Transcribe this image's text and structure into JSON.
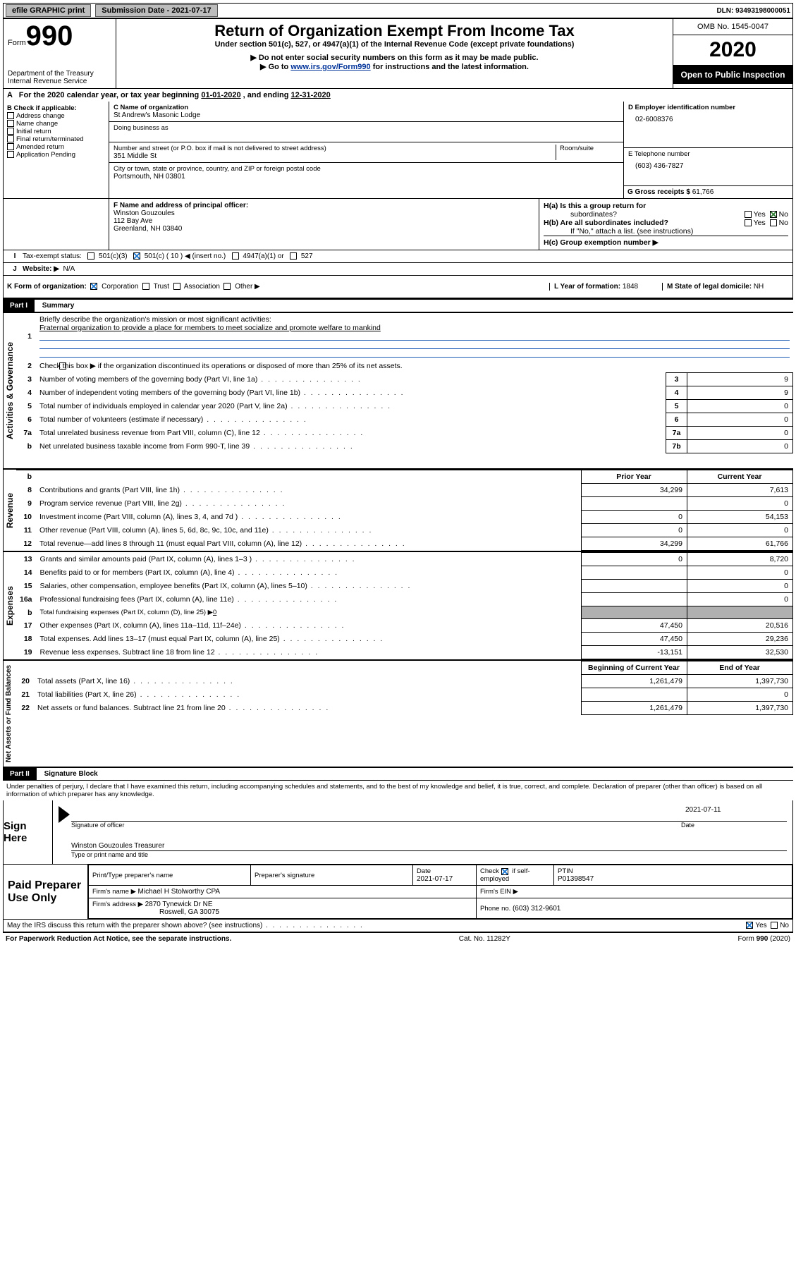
{
  "topbar": {
    "efile": "efile GRAPHIC print",
    "subdate_label": "Submission Date - ",
    "subdate": "2021-07-17",
    "dln_label": "DLN: ",
    "dln": "93493198000051"
  },
  "header": {
    "form_word": "Form",
    "form_no": "990",
    "dept1": "Department of the Treasury",
    "dept2": "Internal Revenue Service",
    "title": "Return of Organization Exempt From Income Tax",
    "sub1": "Under section 501(c), 527, or 4947(a)(1) of the Internal Revenue Code (except private foundations)",
    "sub2": "▶ Do not enter social security numbers on this form as it may be made public.",
    "sub3a": "▶ Go to ",
    "sub3_link": "www.irs.gov/Form990",
    "sub3b": " for instructions and the latest information.",
    "omb": "OMB No. 1545-0047",
    "year": "2020",
    "inspect": "Open to Public Inspection"
  },
  "sectionA": {
    "text_a": "For the 2020 calendar year, or tax year beginning ",
    "begin": "01-01-2020",
    "text_b": "   , and ending ",
    "end": "12-31-2020"
  },
  "colB": {
    "label": "B Check if applicable:",
    "opts": [
      "Address change",
      "Name change",
      "Initial return",
      "Final return/terminated",
      "Amended return",
      "Application Pending"
    ]
  },
  "colC": {
    "c_label": "C Name of organization",
    "org": "St Andrew's Masonic Lodge",
    "dba_label": "Doing business as",
    "addr_label": "Number and street (or P.O. box if mail is not delivered to street address)",
    "room_label": "Room/suite",
    "addr": "351 Middle St",
    "city_label": "City or town, state or province, country, and ZIP or foreign postal code",
    "city": "Portsmouth, NH   03801"
  },
  "colD": {
    "label": "D Employer identification number",
    "ein": "02-6008376",
    "tel_label": "E Telephone number",
    "tel": "(603) 436-7827",
    "gross_label": "G Gross receipts $ ",
    "gross": "61,766"
  },
  "f": {
    "label": "F  Name and address of principal officer:",
    "name": "Winston Gouzoules",
    "l1": "112 Bay Ave",
    "l2": "Greenland, NH   03840"
  },
  "h": {
    "a_label": "H(a)  Is this a group return for",
    "a_sub": "subordinates?",
    "b_label": "H(b)  Are all subordinates included?",
    "b_note": "If \"No,\" attach a list. (see instructions)",
    "c_label": "H(c)  Group exemption number ▶",
    "yes": "Yes",
    "no": "No"
  },
  "i": {
    "label": "Tax-exempt status:",
    "o1": "501(c)(3)",
    "o2a": "501(c) ( ",
    "o2_n": "10",
    "o2b": " ) ◀ (insert no.)",
    "o3": "4947(a)(1) or",
    "o4": "527"
  },
  "j": {
    "label": "Website: ▶",
    "val": "N/A"
  },
  "k": {
    "label": "K Form of organization:",
    "o1": "Corporation",
    "o2": "Trust",
    "o3": "Association",
    "o4": "Other ▶"
  },
  "l": {
    "label": "L Year of formation: ",
    "val": "1848"
  },
  "m": {
    "label": "M State of legal domicile: ",
    "val": "NH"
  },
  "part1": {
    "hdr": "Part I",
    "title": "Summary",
    "q1a": "Briefly describe the organization's mission or most significant activities:",
    "q1b": "Fraternal organization to provide a place for members to meet socialize and promote welfare to mankind",
    "q2": "Check this box ▶         if the organization discontinued its operations or disposed of more than 25% of its net assets.",
    "lines_ag": [
      {
        "n": "3",
        "t": "Number of voting members of the governing body (Part VI, line 1a)",
        "box": "3",
        "v": "9"
      },
      {
        "n": "4",
        "t": "Number of independent voting members of the governing body (Part VI, line 1b)",
        "box": "4",
        "v": "9"
      },
      {
        "n": "5",
        "t": "Total number of individuals employed in calendar year 2020 (Part V, line 2a)",
        "box": "5",
        "v": "0"
      },
      {
        "n": "6",
        "t": "Total number of volunteers (estimate if necessary)",
        "box": "6",
        "v": "0"
      },
      {
        "n": "7a",
        "t": "Total unrelated business revenue from Part VIII, column (C), line 12",
        "box": "7a",
        "v": "0"
      },
      {
        "n": "b",
        "t": "Net unrelated business taxable income from Form 990-T, line 39",
        "box": "7b",
        "v": "0"
      }
    ],
    "col_prior": "Prior Year",
    "col_current": "Current Year",
    "rev": [
      {
        "n": "8",
        "t": "Contributions and grants (Part VIII, line 1h)",
        "p": "34,299",
        "c": "7,613"
      },
      {
        "n": "9",
        "t": "Program service revenue (Part VIII, line 2g)",
        "p": "",
        "c": "0"
      },
      {
        "n": "10",
        "t": "Investment income (Part VIII, column (A), lines 3, 4, and 7d )",
        "p": "0",
        "c": "54,153"
      },
      {
        "n": "11",
        "t": "Other revenue (Part VIII, column (A), lines 5, 6d, 8c, 9c, 10c, and 11e)",
        "p": "0",
        "c": "0"
      },
      {
        "n": "12",
        "t": "Total revenue—add lines 8 through 11 (must equal Part VIII, column (A), line 12)",
        "p": "34,299",
        "c": "61,766"
      }
    ],
    "exp": [
      {
        "n": "13",
        "t": "Grants and similar amounts paid (Part IX, column (A), lines 1–3 )",
        "p": "0",
        "c": "8,720"
      },
      {
        "n": "14",
        "t": "Benefits paid to or for members (Part IX, column (A), line 4)",
        "p": "",
        "c": "0"
      },
      {
        "n": "15",
        "t": "Salaries, other compensation, employee benefits (Part IX, column (A), lines 5–10)",
        "p": "",
        "c": "0"
      },
      {
        "n": "16a",
        "t": "Professional fundraising fees (Part IX, column (A), line 11e)",
        "p": "",
        "c": "0"
      },
      {
        "n": "b",
        "t": "Total fundraising expenses (Part IX, column (D), line 25) ▶",
        "tval": "0",
        "p": "shade",
        "c": "shade"
      },
      {
        "n": "17",
        "t": "Other expenses (Part IX, column (A), lines 11a–11d, 11f–24e)",
        "p": "47,450",
        "c": "20,516"
      },
      {
        "n": "18",
        "t": "Total expenses. Add lines 13–17 (must equal Part IX, column (A), line 25)",
        "p": "47,450",
        "c": "29,236"
      },
      {
        "n": "19",
        "t": "Revenue less expenses. Subtract line 18 from line 12",
        "p": "-13,151",
        "c": "32,530"
      }
    ],
    "col_beg": "Beginning of Current Year",
    "col_end": "End of Year",
    "net": [
      {
        "n": "20",
        "t": "Total assets (Part X, line 16)",
        "p": "1,261,479",
        "c": "1,397,730"
      },
      {
        "n": "21",
        "t": "Total liabilities (Part X, line 26)",
        "p": "",
        "c": "0"
      },
      {
        "n": "22",
        "t": "Net assets or fund balances. Subtract line 21 from line 20",
        "p": "1,261,479",
        "c": "1,397,730"
      }
    ]
  },
  "part2": {
    "hdr": "Part II",
    "title": "Signature Block",
    "decl": "Under penalties of perjury, I declare that I have examined this return, including accompanying schedules and statements, and to the best of my knowledge and belief, it is true, correct, and complete. Declaration of preparer (other than officer) is based on all information of which preparer has any knowledge."
  },
  "sign": {
    "here": "Sign Here",
    "sig_officer": "Signature of officer",
    "date": "Date",
    "date_val": "2021-07-11",
    "printed": "Winston Gouzoules  Treasurer",
    "printed_label": "Type or print name and title"
  },
  "prep": {
    "label": "Paid Preparer Use Only",
    "c1": "Print/Type preparer's name",
    "c2": "Preparer's signature",
    "c3": "Date",
    "c3v": "2021-07-17",
    "c4a": "Check",
    "c4b": "if self-employed",
    "c5": "PTIN",
    "c5v": "P01398547",
    "firm_label": "Firm's name      ▶ ",
    "firm": "Michael H Stolworthy CPA",
    "ein_label": "Firm's EIN ▶",
    "addr_label": "Firm's address ▶ ",
    "addr1": "2870 Tynewick Dr NE",
    "addr2": "Roswell, GA   30075",
    "phone_label": "Phone no. ",
    "phone": "(603) 312-9601"
  },
  "discuss": {
    "q": "May the IRS discuss this return with the preparer shown above? (see instructions)",
    "yes": "Yes",
    "no": "No"
  },
  "footer": {
    "a": "For Paperwork Reduction Act Notice, see the separate instructions.",
    "b": "Cat. No. 11282Y",
    "c": "Form 990 (2020)"
  },
  "sidelabels": {
    "ag": "Activities & Governance",
    "rev": "Revenue",
    "exp": "Expenses",
    "net": "Net Assets or Fund Balances"
  }
}
